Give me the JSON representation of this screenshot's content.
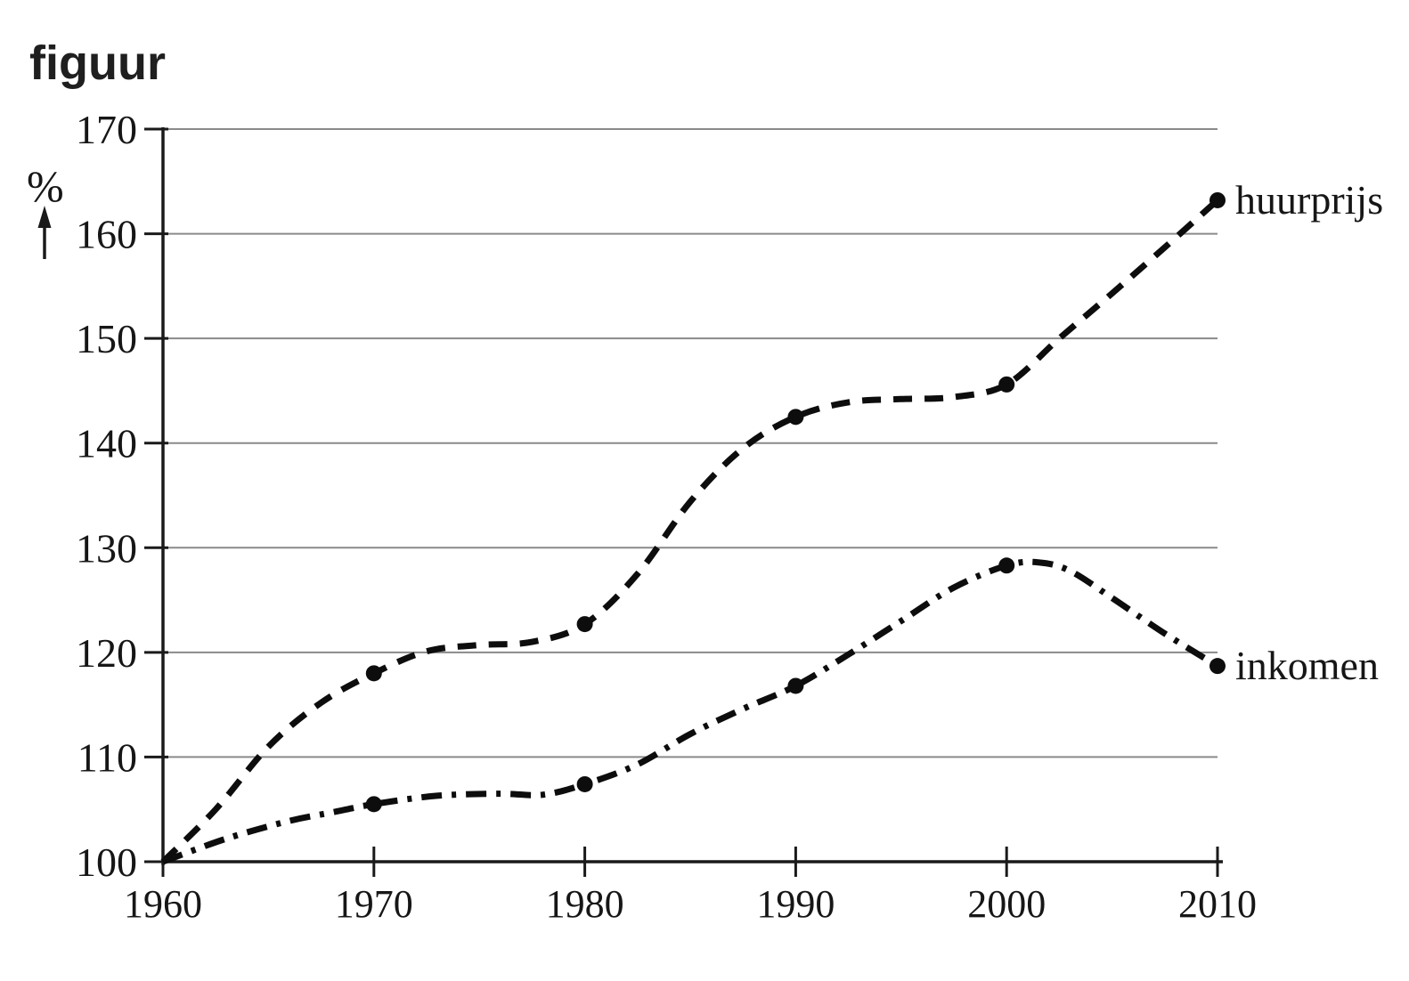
{
  "page": {
    "title": "figuur"
  },
  "chart_data": {
    "type": "line",
    "title": "figuur",
    "grid": "horizontal-gray-lines",
    "legend_position": "labels-at-line-ends-right",
    "x_axis": {
      "label": "",
      "range": [
        1960,
        2010
      ],
      "ticks": [
        1960,
        1970,
        1980,
        1990,
        2000,
        2010
      ]
    },
    "y_axis": {
      "unit_label": "%",
      "range": [
        100,
        170
      ],
      "ticks": [
        100,
        110,
        120,
        130,
        140,
        150,
        160,
        170
      ]
    },
    "categories": [
      1960,
      1970,
      1980,
      1990,
      2000,
      2010
    ],
    "marker_years": [
      1970,
      1980,
      1990,
      2000,
      2010
    ],
    "series": [
      {
        "name": "huurprijs",
        "line_style": "dashed",
        "values": [
          100,
          118,
          123,
          142.5,
          145.5,
          163
        ],
        "curve": [
          [
            1960,
            100
          ],
          [
            1962.5,
            105
          ],
          [
            1965,
            111
          ],
          [
            1967.5,
            115.2
          ],
          [
            1970,
            118
          ],
          [
            1972.5,
            120.1
          ],
          [
            1975,
            120.7
          ],
          [
            1977.5,
            121
          ],
          [
            1980,
            122.7
          ],
          [
            1982.5,
            127.5
          ],
          [
            1985,
            134.4
          ],
          [
            1987.5,
            139.5
          ],
          [
            1990,
            142.5
          ],
          [
            1992.5,
            143.9
          ],
          [
            1995,
            144.2
          ],
          [
            1997.5,
            144.4
          ],
          [
            2000,
            145.6
          ],
          [
            2002.5,
            150
          ],
          [
            2005,
            154.3
          ],
          [
            2007.5,
            158.7
          ],
          [
            2010,
            163.2
          ]
        ]
      },
      {
        "name": "inkomen",
        "line_style": "dash-dot",
        "values": [
          100,
          106,
          107.5,
          117,
          128.5,
          119
        ],
        "curve": [
          [
            1960,
            100
          ],
          [
            1963,
            102.2
          ],
          [
            1966,
            103.9
          ],
          [
            1968,
            104.7
          ],
          [
            1970,
            105.5
          ],
          [
            1973,
            106.3
          ],
          [
            1976,
            106.5
          ],
          [
            1978,
            106.4
          ],
          [
            1980,
            107.4
          ],
          [
            1982.5,
            109.3
          ],
          [
            1985,
            112.2
          ],
          [
            1987.5,
            114.6
          ],
          [
            1990,
            116.8
          ],
          [
            1992.5,
            119.8
          ],
          [
            1995,
            123
          ],
          [
            1997.5,
            126.2
          ],
          [
            2000,
            128.3
          ],
          [
            2001.5,
            128.6
          ],
          [
            2003,
            127.8
          ],
          [
            2005,
            125.2
          ],
          [
            2007.5,
            121.8
          ],
          [
            2010,
            118.7
          ]
        ]
      }
    ],
    "colors": {
      "line": "#0d0d0d",
      "grid": "#8a8a8a",
      "axis": "#1a1a1a",
      "text": "#161616"
    }
  }
}
